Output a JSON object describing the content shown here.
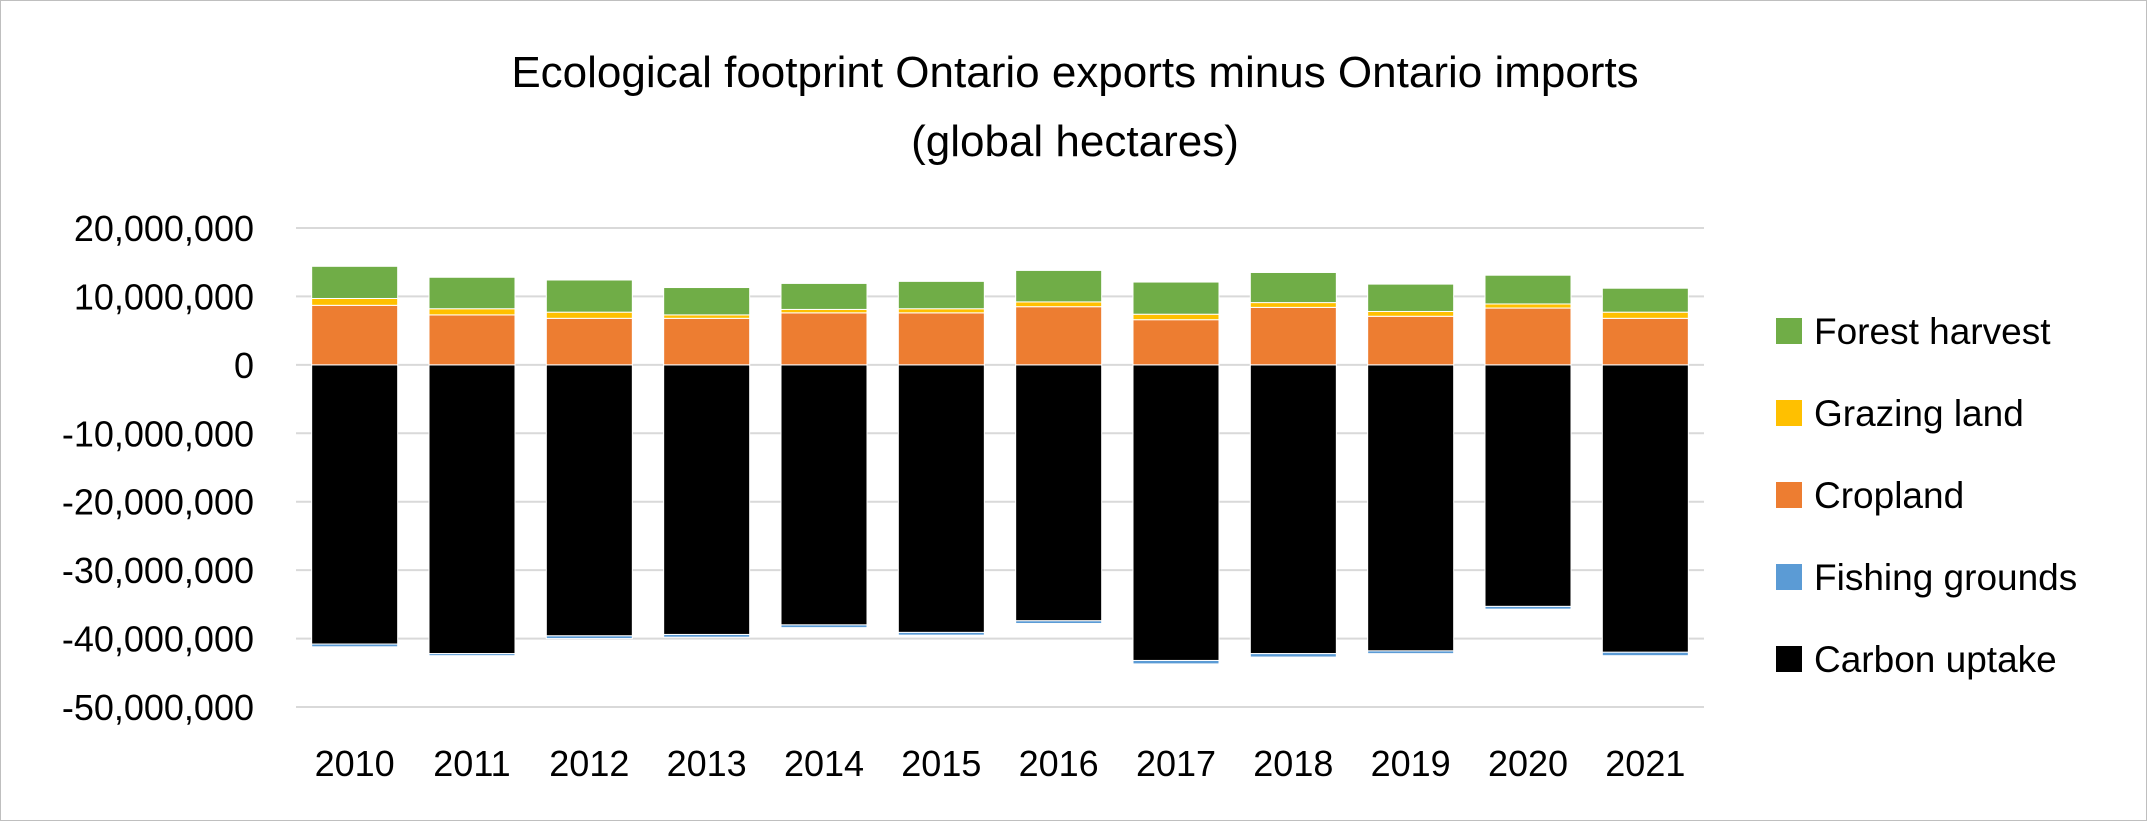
{
  "chart_data": {
    "type": "bar",
    "stacked": true,
    "title_lines": [
      "Ecological footprint Ontario exports minus Ontario imports",
      "(global hectares)"
    ],
    "xlabel": "",
    "ylabel": "",
    "categories": [
      "2010",
      "2011",
      "2012",
      "2013",
      "2014",
      "2015",
      "2016",
      "2017",
      "2018",
      "2019",
      "2020",
      "2021"
    ],
    "ylim": [
      -50000000,
      20000000
    ],
    "yticks": [
      20000000,
      10000000,
      0,
      -10000000,
      -20000000,
      -30000000,
      -40000000,
      -50000000
    ],
    "ytick_labels": [
      "20,000,000",
      "10,000,000",
      "0",
      "-10,000,000",
      "-20,000,000",
      "-30,000,000",
      "-40,000,000",
      "-50,000,000"
    ],
    "grid": true,
    "legend_position": "right",
    "series": [
      {
        "name": "Carbon uptake",
        "color": "#000000",
        "values": [
          -40800000,
          -42200000,
          -39600000,
          -39400000,
          -38000000,
          -39100000,
          -37400000,
          -43200000,
          -42200000,
          -41800000,
          -35300000,
          -42000000
        ]
      },
      {
        "name": "Fishing grounds",
        "color": "#5b9bd5",
        "values": [
          -400000,
          -300000,
          -400000,
          -400000,
          -400000,
          -400000,
          -400000,
          -500000,
          -500000,
          -400000,
          -400000,
          -500000
        ]
      },
      {
        "name": "Cropland",
        "color": "#ed7d31",
        "values": [
          8700000,
          7300000,
          6800000,
          6800000,
          7600000,
          7600000,
          8500000,
          6600000,
          8400000,
          7100000,
          8300000,
          6800000
        ]
      },
      {
        "name": "Grazing land",
        "color": "#ffc000",
        "values": [
          1000000,
          900000,
          900000,
          500000,
          500000,
          600000,
          700000,
          800000,
          700000,
          700000,
          600000,
          900000
        ]
      },
      {
        "name": "Forest harvest",
        "color": "#70ad47",
        "values": [
          4700000,
          4600000,
          4700000,
          4000000,
          3800000,
          4000000,
          4600000,
          4700000,
          4400000,
          4000000,
          4200000,
          3500000
        ]
      }
    ],
    "legend_order": [
      "Forest harvest",
      "Grazing land",
      "Cropland",
      "Fishing grounds",
      "Carbon uptake"
    ]
  }
}
